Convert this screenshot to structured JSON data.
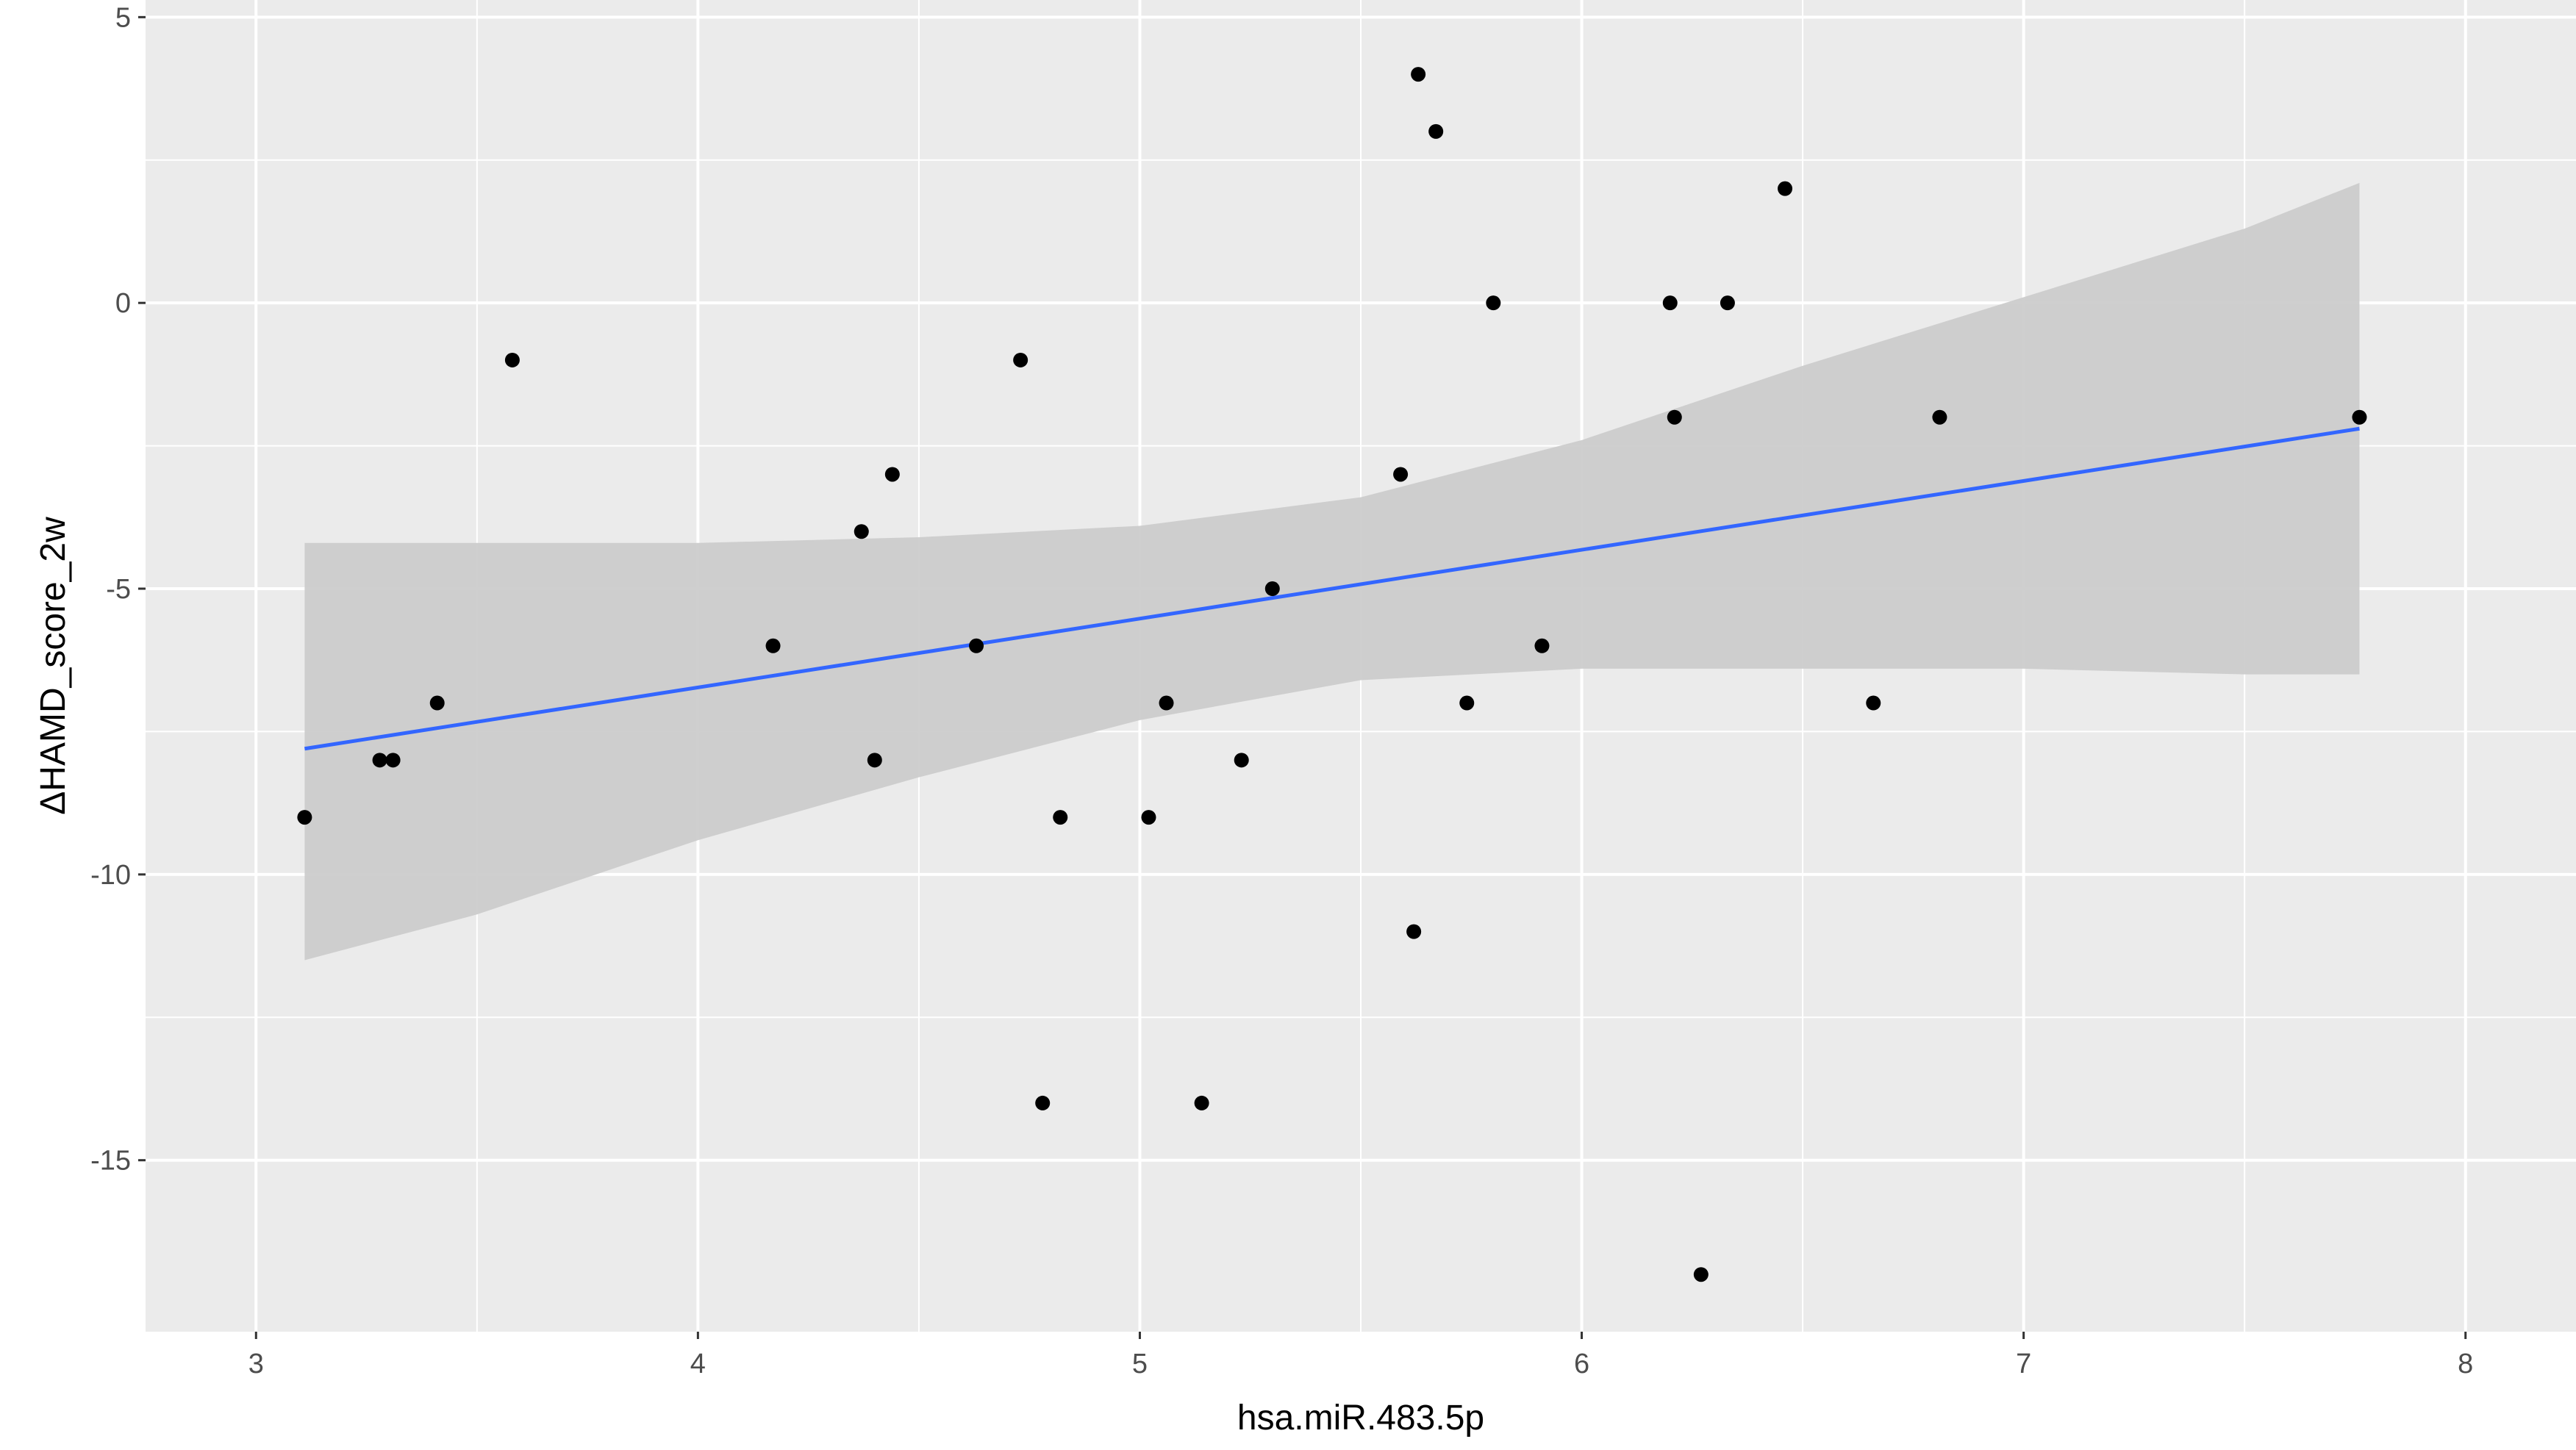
{
  "chart_data": {
    "type": "scatter",
    "title": "",
    "xlabel": "hsa.miR.483.5p",
    "ylabel": "ΔHAMD_score_2w",
    "xlim": [
      2.75,
      8.25
    ],
    "ylim": [
      -18,
      5.3
    ],
    "xticks": [
      3,
      4,
      5,
      6,
      7,
      8
    ],
    "yticks": [
      5,
      0,
      -5,
      -10,
      -15
    ],
    "grid": true,
    "legend": "none",
    "colors": {
      "panel_background": "#ebebeb",
      "grid_line": "#ffffff",
      "point": "#000000",
      "fit_line": "#3366ff",
      "confidence_band": "#cccccc"
    },
    "points": [
      {
        "x": 3.11,
        "y": -9
      },
      {
        "x": 3.28,
        "y": -8
      },
      {
        "x": 3.31,
        "y": -8
      },
      {
        "x": 3.41,
        "y": -7
      },
      {
        "x": 3.58,
        "y": -1
      },
      {
        "x": 4.17,
        "y": -6
      },
      {
        "x": 4.37,
        "y": -4
      },
      {
        "x": 4.4,
        "y": -8
      },
      {
        "x": 4.44,
        "y": -3
      },
      {
        "x": 4.63,
        "y": -6
      },
      {
        "x": 4.73,
        "y": -1
      },
      {
        "x": 4.78,
        "y": -14
      },
      {
        "x": 4.82,
        "y": -9
      },
      {
        "x": 5.02,
        "y": -9
      },
      {
        "x": 5.06,
        "y": -7
      },
      {
        "x": 5.14,
        "y": -14
      },
      {
        "x": 5.23,
        "y": -8
      },
      {
        "x": 5.3,
        "y": -5
      },
      {
        "x": 5.59,
        "y": -3
      },
      {
        "x": 5.62,
        "y": -11
      },
      {
        "x": 5.63,
        "y": 4
      },
      {
        "x": 5.67,
        "y": 3
      },
      {
        "x": 5.74,
        "y": -7
      },
      {
        "x": 5.8,
        "y": 0
      },
      {
        "x": 5.91,
        "y": -6
      },
      {
        "x": 6.2,
        "y": 0
      },
      {
        "x": 6.21,
        "y": -2
      },
      {
        "x": 6.27,
        "y": -17
      },
      {
        "x": 6.33,
        "y": 0
      },
      {
        "x": 6.46,
        "y": 2
      },
      {
        "x": 6.66,
        "y": -7
      },
      {
        "x": 6.81,
        "y": -2
      },
      {
        "x": 7.76,
        "y": -2
      }
    ],
    "fit_line": {
      "x": [
        3.11,
        7.76
      ],
      "y": [
        -7.8,
        -2.2
      ]
    },
    "confidence_band": [
      {
        "x": 3.11,
        "lower": -11.5,
        "upper": -4.2
      },
      {
        "x": 3.5,
        "lower": -10.7,
        "upper": -4.2
      },
      {
        "x": 4.0,
        "lower": -9.4,
        "upper": -4.2
      },
      {
        "x": 4.5,
        "lower": -8.3,
        "upper": -4.1
      },
      {
        "x": 5.0,
        "lower": -7.3,
        "upper": -3.9
      },
      {
        "x": 5.5,
        "lower": -6.6,
        "upper": -3.4
      },
      {
        "x": 6.0,
        "lower": -6.4,
        "upper": -2.4
      },
      {
        "x": 6.5,
        "lower": -6.4,
        "upper": -1.1
      },
      {
        "x": 7.0,
        "lower": -6.4,
        "upper": 0.1
      },
      {
        "x": 7.5,
        "lower": -6.5,
        "upper": 1.3
      },
      {
        "x": 7.76,
        "lower": -6.5,
        "upper": 2.1
      }
    ]
  }
}
